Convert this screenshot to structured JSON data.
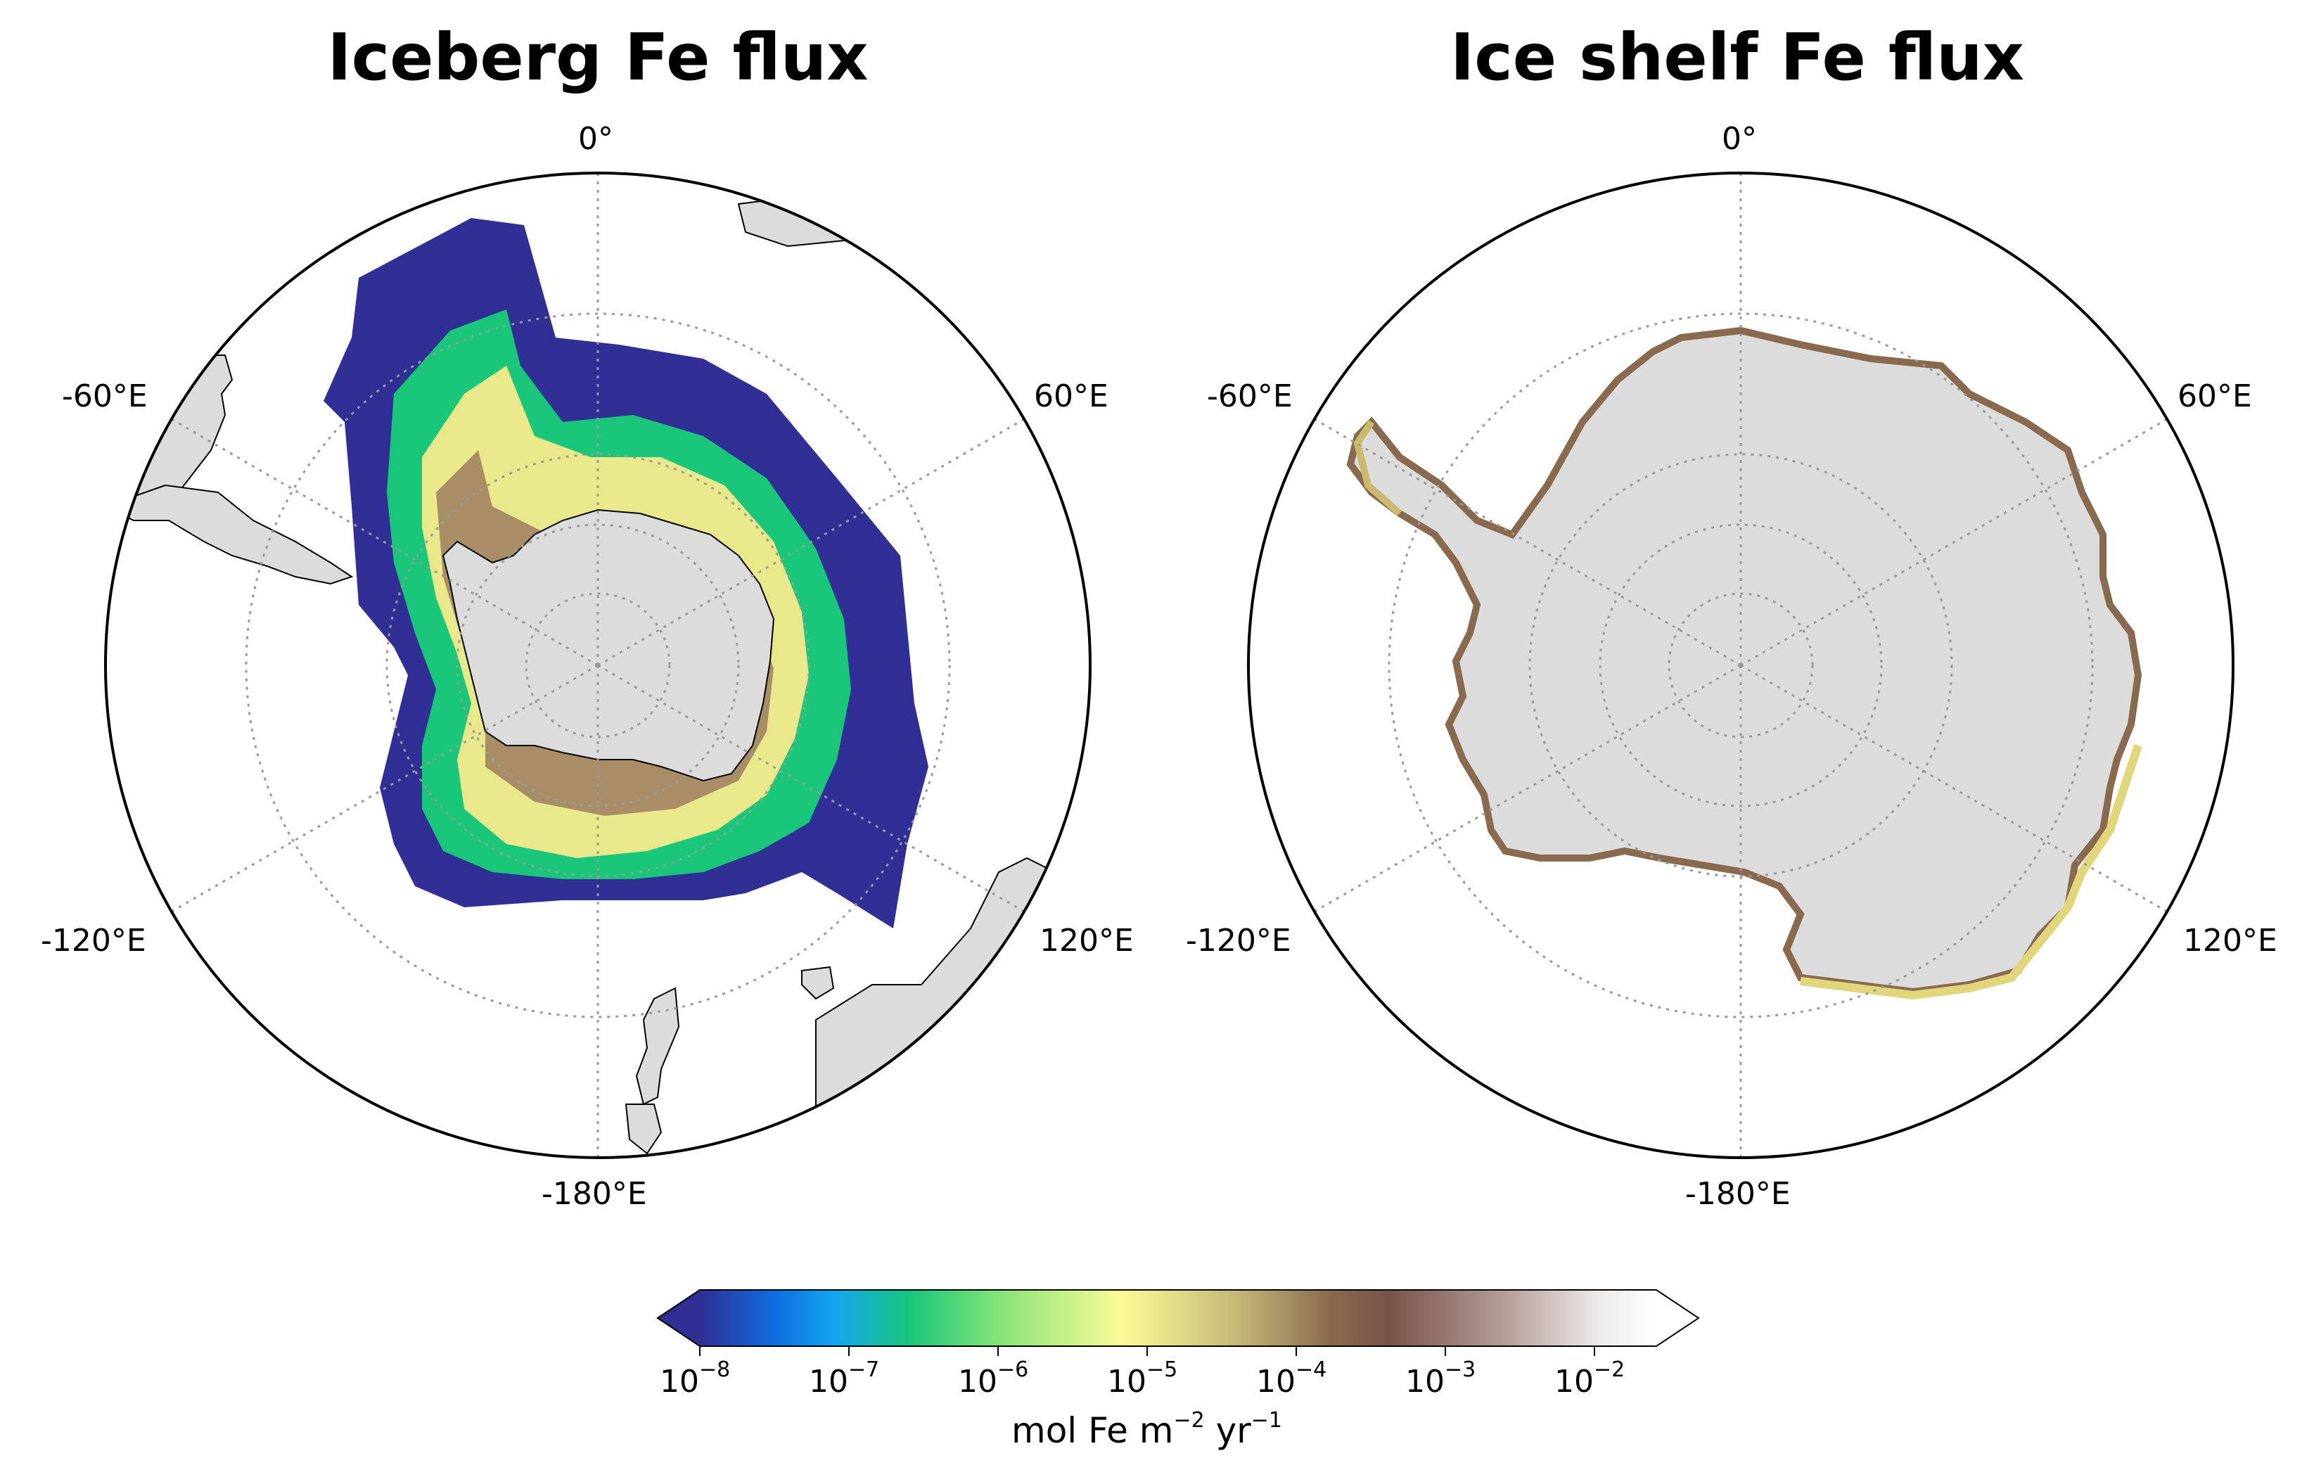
{
  "panels": [
    {
      "title": "Iceberg Fe flux",
      "lon_labels": {
        "top": "0°",
        "left": "-60°E",
        "right": "60°E",
        "bottom_left": "-120°E",
        "bottom_right": "120°E",
        "bottom": "-180°E"
      }
    },
    {
      "title": "Ice shelf Fe flux",
      "lon_labels": {
        "top": "0°",
        "left": "-60°E",
        "right": "60°E",
        "bottom_left": "-120°E",
        "bottom_right": "120°E",
        "bottom": "-180°E"
      }
    }
  ],
  "colorbar": {
    "label_text": "mol Fe m",
    "label_exp1": "−2",
    "label_mid": " yr",
    "label_exp2": "−1",
    "tick_base": "10",
    "ticks": [
      "−8",
      "−7",
      "−6",
      "−5",
      "−4",
      "−3",
      "−2"
    ],
    "scale": "log",
    "range": [
      1e-08,
      0.03
    ],
    "extend": "both",
    "colors": [
      "#2f2f96",
      "#0e6fe0",
      "#13c3f0",
      "#19c67a",
      "#8ee57a",
      "#fbfb96",
      "#c6b978",
      "#8a6a4e",
      "#7a5348",
      "#b49c98",
      "#f4f2f2",
      "#ffffff"
    ]
  },
  "land_color": "#dcdcdc",
  "grid_color": "#999999"
}
